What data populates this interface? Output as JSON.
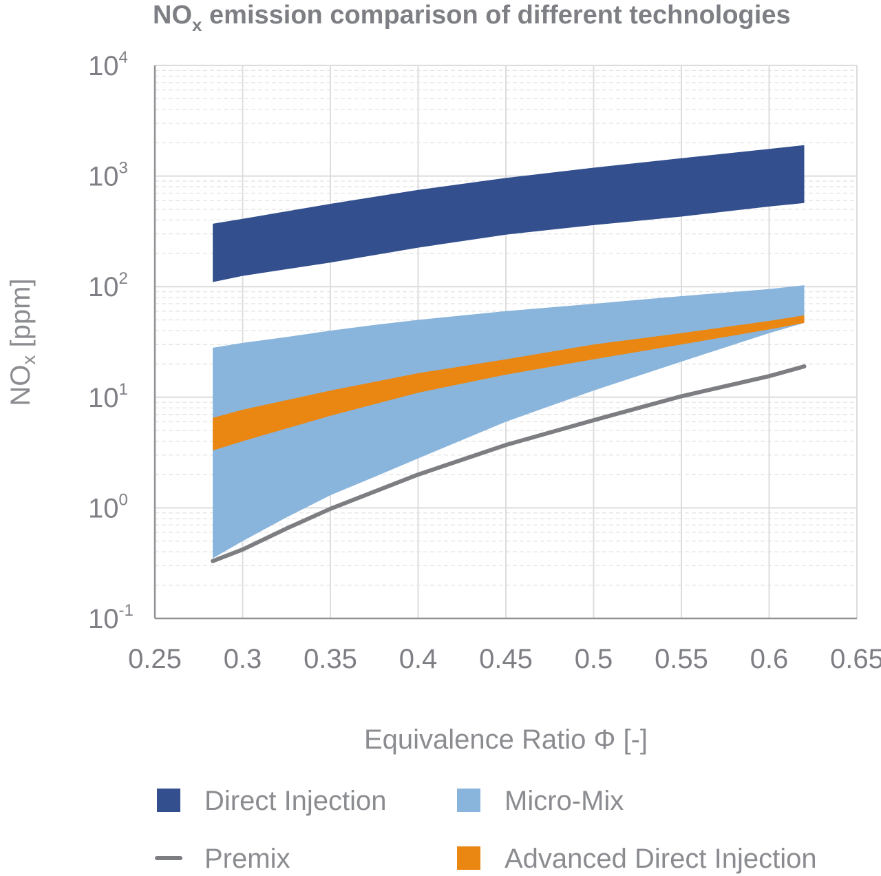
{
  "chart_data": {
    "type": "area",
    "title": "NO",
    "title_subscript": "x",
    "title_rest": " emission comparison of different technologies",
    "xlabel": "Equivalence Ratio Φ [-]",
    "ylabel": "NO",
    "ylabel_subscript": "x",
    "ylabel_rest": " [ppm]",
    "x_scale": "linear",
    "y_scale": "log",
    "xlim": [
      0.25,
      0.65
    ],
    "ylim": [
      0.1,
      10000
    ],
    "x_ticks": [
      0.25,
      0.3,
      0.35,
      0.4,
      0.45,
      0.5,
      0.55,
      0.6,
      0.65
    ],
    "x_tick_labels": [
      "0.25",
      "0.3",
      "0.35",
      "0.4",
      "0.45",
      "0.5",
      "0.55",
      "0.6",
      "0.65"
    ],
    "y_ticks": [
      {
        "value": 0.1,
        "base": "10",
        "exp": "-1"
      },
      {
        "value": 1,
        "base": "10",
        "exp": "0"
      },
      {
        "value": 10,
        "base": "10",
        "exp": "1"
      },
      {
        "value": 100,
        "base": "10",
        "exp": "2"
      },
      {
        "value": 1000,
        "base": "10",
        "exp": "3"
      },
      {
        "value": 10000,
        "base": "10",
        "exp": "4"
      }
    ],
    "grid": true,
    "legend_position": "bottom",
    "series": [
      {
        "name": "Direct Injection",
        "kind": "band",
        "color": "#334f8e",
        "x": [
          0.283,
          0.3,
          0.35,
          0.4,
          0.45,
          0.5,
          0.55,
          0.6,
          0.62
        ],
        "lower": [
          110,
          125,
          165,
          225,
          295,
          360,
          430,
          530,
          570
        ],
        "upper": [
          370,
          410,
          560,
          750,
          960,
          1190,
          1450,
          1760,
          1900
        ]
      },
      {
        "name": "Micro-Mix",
        "kind": "band",
        "color": "#89b4dc",
        "x": [
          0.283,
          0.3,
          0.325,
          0.35,
          0.375,
          0.4,
          0.45,
          0.5,
          0.55,
          0.6,
          0.62
        ],
        "lower": [
          0.35,
          0.5,
          0.82,
          1.3,
          1.9,
          2.8,
          6,
          11.5,
          21,
          38,
          47
        ],
        "upper": [
          28,
          31,
          35,
          40,
          45,
          50,
          60,
          70,
          82,
          95,
          103
        ]
      },
      {
        "name": "Advanced Direct Injection",
        "kind": "band",
        "color": "#ea8712",
        "x": [
          0.283,
          0.3,
          0.35,
          0.4,
          0.45,
          0.5,
          0.55,
          0.6,
          0.62
        ],
        "lower": [
          3.3,
          4,
          6.8,
          11,
          16,
          22,
          30,
          41,
          47
        ],
        "upper": [
          6.5,
          7.7,
          11.5,
          16.5,
          22,
          30,
          38,
          49,
          55
        ]
      },
      {
        "name": "Premix",
        "kind": "line",
        "color": "#7d7e82",
        "x": [
          0.283,
          0.3,
          0.325,
          0.35,
          0.375,
          0.4,
          0.45,
          0.5,
          0.55,
          0.6,
          0.62
        ],
        "y": [
          0.33,
          0.42,
          0.65,
          0.98,
          1.4,
          2,
          3.7,
          6.2,
          10.2,
          15.5,
          19
        ]
      }
    ],
    "legend": [
      {
        "label": "Direct Injection",
        "symbol": "box",
        "color": "#334f8e"
      },
      {
        "label": "Micro-Mix",
        "symbol": "box",
        "color": "#89b4dc"
      },
      {
        "label": "Premix",
        "symbol": "line",
        "color": "#7d7e82"
      },
      {
        "label": "Advanced Direct Injection",
        "symbol": "box",
        "color": "#ea8712"
      }
    ]
  }
}
